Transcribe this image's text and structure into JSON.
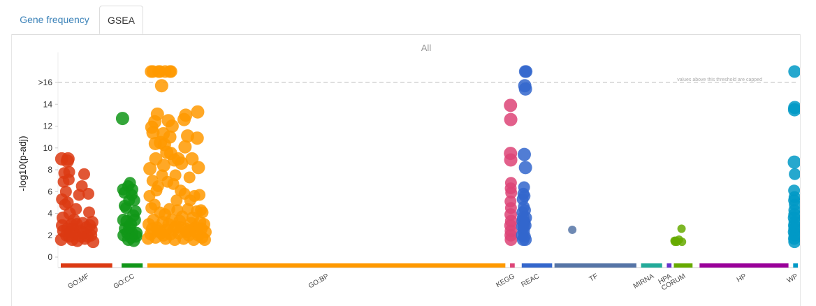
{
  "tabs": [
    {
      "label": "Gene frequency",
      "active": false
    },
    {
      "label": "GSEA",
      "active": true
    }
  ],
  "chart_data": {
    "type": "scatter",
    "title": "All",
    "ylabel": "-log10(p-adj)",
    "ylim": [
      -1,
      17.5
    ],
    "y_ticks": [
      {
        "value": 0,
        "label": "0"
      },
      {
        "value": 2,
        "label": "2"
      },
      {
        "value": 4,
        "label": "4"
      },
      {
        "value": 6,
        "label": "6"
      },
      {
        "value": 8,
        "label": "8"
      },
      {
        "value": 10,
        "label": "10"
      },
      {
        "value": 12,
        "label": "12"
      },
      {
        "value": 14,
        "label": "14"
      },
      {
        "value": 16,
        "label": ">16"
      }
    ],
    "threshold": {
      "value": 16,
      "label": "values above this threshold are capped"
    },
    "sources": [
      {
        "name": "GO:MF",
        "color": "#dc3912",
        "range": [
          0,
          22
        ],
        "points": [
          [
            0.4,
            9.0
          ],
          [
            0.5,
            5.3
          ],
          [
            1.2,
            6.9
          ],
          [
            1.5,
            7.7
          ],
          [
            2.8,
            8.8
          ],
          [
            3.1,
            9.0
          ],
          [
            3.4,
            7.1
          ],
          [
            3.6,
            7.8
          ],
          [
            2.2,
            6.0
          ],
          [
            3.0,
            5.0
          ],
          [
            3.8,
            4.0
          ],
          [
            6.5,
            4.4
          ],
          [
            7.8,
            5.7
          ],
          [
            9.0,
            6.5
          ],
          [
            10.0,
            7.6
          ],
          [
            11.8,
            5.8
          ],
          [
            12.1,
            4.1
          ],
          [
            13.4,
            3.2
          ],
          [
            0.9,
            3.6
          ],
          [
            1.8,
            4.8
          ],
          [
            4.6,
            3.0
          ],
          [
            5.3,
            2.6
          ],
          [
            6.1,
            2.1
          ],
          [
            8.2,
            2.4
          ],
          [
            9.4,
            3.1
          ],
          [
            11.0,
            2.7
          ],
          [
            12.9,
            2.0
          ],
          [
            1.1,
            2.4
          ],
          [
            2.4,
            2.0
          ],
          [
            3.6,
            1.9
          ],
          [
            4.9,
            1.6
          ],
          [
            7.1,
            1.5
          ],
          [
            10.3,
            1.7
          ],
          [
            13.8,
            1.4
          ],
          [
            0.6,
            2.9
          ],
          [
            5.7,
            3.4
          ],
          [
            8.7,
            1.9
          ],
          [
            12.4,
            2.9
          ],
          [
            2.9,
            2.6
          ],
          [
            4.1,
            2.3
          ],
          [
            6.8,
            3.0
          ],
          [
            9.8,
            2.2
          ],
          [
            11.5,
            1.9
          ],
          [
            0.2,
            1.6
          ],
          [
            13.1,
            2.5
          ]
        ]
      },
      {
        "name": "GO:CC",
        "color": "#109618",
        "range": [
          26,
          35
        ],
        "points": [
          [
            0.4,
            12.7
          ],
          [
            0.6,
            6.2
          ],
          [
            1.2,
            5.9
          ],
          [
            1.9,
            4.5
          ],
          [
            2.8,
            6.5
          ],
          [
            3.2,
            5.2
          ],
          [
            3.6,
            6.8
          ],
          [
            4.3,
            5.7
          ],
          [
            4.6,
            6.2
          ],
          [
            5.0,
            3.8
          ],
          [
            5.4,
            5.2
          ],
          [
            6.0,
            4.2
          ],
          [
            6.3,
            2.2
          ],
          [
            0.8,
            3.4
          ],
          [
            1.5,
            2.6
          ],
          [
            2.2,
            3.3
          ],
          [
            3.3,
            2.7
          ],
          [
            4.4,
            2.2
          ],
          [
            5.6,
            3.4
          ],
          [
            0.9,
            2.0
          ],
          [
            2.5,
            2.2
          ],
          [
            4.0,
            1.8
          ],
          [
            6.2,
            1.9
          ],
          [
            1.3,
            4.7
          ],
          [
            3.9,
            3.0
          ],
          [
            2.9,
            1.6
          ],
          [
            5.2,
            1.5
          ]
        ]
      },
      {
        "name": "GO:BP",
        "color": "#ff9900",
        "range": [
          37,
          190
        ],
        "points": [
          [
            1.6,
            17.0
          ],
          [
            2.4,
            17.0
          ],
          [
            4.8,
            17.0
          ],
          [
            5.4,
            17.0
          ],
          [
            7.6,
            17.0
          ],
          [
            9.6,
            17.0
          ],
          [
            10.1,
            17.0
          ],
          [
            6.1,
            15.7
          ],
          [
            1.1,
            8.1
          ],
          [
            1.9,
            11.9
          ],
          [
            2.4,
            11.4
          ],
          [
            3.2,
            12.4
          ],
          [
            3.4,
            10.4
          ],
          [
            4.3,
            13.1
          ],
          [
            5.6,
            10.5
          ],
          [
            6.8,
            11.3
          ],
          [
            7.3,
            10.3
          ],
          [
            9.0,
            12.5
          ],
          [
            9.6,
            11.0
          ],
          [
            10.6,
            12.0
          ],
          [
            11.5,
            8.9
          ],
          [
            13.2,
            9.0
          ],
          [
            15.7,
            12.6
          ],
          [
            16.4,
            13.0
          ],
          [
            17.2,
            11.1
          ],
          [
            19.1,
            9.0
          ],
          [
            21.5,
            13.3
          ],
          [
            21.3,
            10.9
          ],
          [
            21.8,
            8.2
          ],
          [
            3.6,
            9.0
          ],
          [
            8.3,
            9.6
          ],
          [
            10.0,
            9.5
          ],
          [
            14.6,
            8.6
          ],
          [
            16.1,
            10.1
          ],
          [
            2.2,
            7.0
          ],
          [
            4.6,
            6.5
          ],
          [
            6.3,
            7.5
          ],
          [
            8.6,
            6.9
          ],
          [
            11.1,
            6.7
          ],
          [
            12.5,
            5.2
          ],
          [
            14.2,
            6.1
          ],
          [
            15.9,
            5.8
          ],
          [
            18.3,
            5.2
          ],
          [
            20.1,
            5.6
          ],
          [
            22.3,
            5.7
          ],
          [
            0.9,
            5.6
          ],
          [
            1.7,
            4.5
          ],
          [
            3.1,
            4.8
          ],
          [
            5.3,
            4.1
          ],
          [
            7.5,
            3.9
          ],
          [
            9.4,
            4.4
          ],
          [
            12.8,
            4.3
          ],
          [
            14.9,
            3.7
          ],
          [
            17.3,
            4.4
          ],
          [
            19.4,
            3.6
          ],
          [
            21.1,
            4.2
          ],
          [
            22.9,
            4.3
          ],
          [
            23.6,
            4.1
          ],
          [
            0.6,
            3.0
          ],
          [
            2.6,
            3.4
          ],
          [
            4.0,
            2.7
          ],
          [
            6.6,
            3.2
          ],
          [
            8.2,
            2.5
          ],
          [
            10.4,
            3.4
          ],
          [
            12.2,
            2.8
          ],
          [
            13.8,
            3.3
          ],
          [
            16.3,
            2.6
          ],
          [
            18.7,
            3.1
          ],
          [
            20.6,
            2.7
          ],
          [
            22.5,
            3.2
          ],
          [
            24.2,
            3.0
          ],
          [
            1.4,
            2.1
          ],
          [
            3.5,
            1.8
          ],
          [
            5.9,
            2.2
          ],
          [
            7.8,
            1.7
          ],
          [
            9.9,
            2.1
          ],
          [
            11.7,
            1.6
          ],
          [
            13.4,
            2.2
          ],
          [
            15.5,
            1.7
          ],
          [
            17.7,
            2.0
          ],
          [
            19.8,
            1.6
          ],
          [
            21.8,
            2.0
          ],
          [
            23.4,
            1.8
          ],
          [
            24.8,
            2.3
          ],
          [
            2.1,
            2.6
          ],
          [
            4.4,
            2.4
          ],
          [
            6.9,
            2.0
          ],
          [
            9.1,
            3.0
          ],
          [
            11.3,
            2.5
          ],
          [
            14.4,
            2.7
          ],
          [
            16.8,
            2.3
          ],
          [
            18.9,
            2.5
          ],
          [
            20.9,
            2.3
          ],
          [
            23.1,
            2.6
          ],
          [
            0.3,
            1.7
          ],
          [
            24.5,
            1.6
          ],
          [
            12.0,
            7.5
          ],
          [
            7.0,
            8.4
          ],
          [
            3.9,
            6.1
          ],
          [
            18.0,
            7.3
          ]
        ]
      },
      {
        "name": "KEGG",
        "color": "#dd4477",
        "range": [
          192,
          194
        ],
        "points": [
          [
            0.2,
            13.9
          ],
          [
            0.3,
            12.6
          ],
          [
            0.2,
            9.5
          ],
          [
            0.3,
            8.9
          ],
          [
            0.4,
            6.8
          ],
          [
            0.3,
            6.3
          ],
          [
            0.5,
            5.9
          ],
          [
            0.2,
            5.1
          ],
          [
            0.4,
            4.5
          ],
          [
            0.3,
            3.9
          ],
          [
            0.5,
            3.3
          ],
          [
            0.2,
            2.9
          ],
          [
            0.4,
            2.4
          ],
          [
            0.3,
            2.0
          ],
          [
            0.4,
            1.6
          ]
        ]
      },
      {
        "name": "REAC",
        "color": "#3366cc",
        "range": [
          197,
          210
        ],
        "points": [
          [
            1.5,
            17.0
          ],
          [
            1.9,
            17.0
          ],
          [
            1.3,
            15.7
          ],
          [
            1.6,
            15.4
          ],
          [
            1.1,
            9.4
          ],
          [
            1.6,
            8.2
          ],
          [
            1.0,
            6.4
          ],
          [
            0.7,
            5.8
          ],
          [
            1.2,
            5.6
          ],
          [
            0.4,
            5.3
          ],
          [
            0.9,
            4.6
          ],
          [
            0.3,
            4.1
          ],
          [
            1.4,
            4.3
          ],
          [
            0.6,
            3.6
          ],
          [
            1.1,
            3.2
          ],
          [
            0.3,
            2.8
          ],
          [
            1.5,
            2.9
          ],
          [
            0.8,
            2.4
          ],
          [
            0.2,
            2.0
          ],
          [
            1.2,
            1.9
          ],
          [
            0.6,
            1.6
          ],
          [
            1.6,
            1.6
          ],
          [
            0.4,
            3.3
          ],
          [
            0.9,
            2.8
          ],
          [
            1.7,
            3.6
          ]
        ]
      },
      {
        "name": "TF",
        "color": "#5574a6",
        "range": [
          211,
          246
        ],
        "points": [
          [
            7.6,
            2.5
          ]
        ]
      },
      {
        "name": "MIRNA",
        "color": "#22aa99",
        "range": [
          248,
          257
        ],
        "points": []
      },
      {
        "name": "HPA",
        "color": "#6633cc",
        "range": [
          259,
          261
        ],
        "points": []
      },
      {
        "name": "CORUM",
        "color": "#66aa00",
        "range": [
          262,
          270
        ],
        "points": [
          [
            0.3,
            1.5
          ],
          [
            0.5,
            1.4
          ],
          [
            0.8,
            1.5
          ],
          [
            1.3,
            1.4
          ],
          [
            2.2,
            1.6
          ],
          [
            3.3,
            2.6
          ],
          [
            3.5,
            1.4
          ]
        ]
      },
      {
        "name": "HP",
        "color": "#990099",
        "range": [
          273,
          311
        ],
        "points": []
      },
      {
        "name": "WP",
        "color": "#0099c6",
        "range": [
          313,
          315
        ],
        "points": [
          [
            0.6,
            17.0
          ],
          [
            0.7,
            13.7
          ],
          [
            0.6,
            13.5
          ],
          [
            0.5,
            8.7
          ],
          [
            0.7,
            7.6
          ],
          [
            0.4,
            6.1
          ],
          [
            0.6,
            5.5
          ],
          [
            0.4,
            5.2
          ],
          [
            0.7,
            4.8
          ],
          [
            0.5,
            4.3
          ],
          [
            0.6,
            3.9
          ],
          [
            0.4,
            3.6
          ],
          [
            0.7,
            3.2
          ],
          [
            0.5,
            2.9
          ],
          [
            0.6,
            2.6
          ],
          [
            0.4,
            2.3
          ],
          [
            0.7,
            2.0
          ],
          [
            0.5,
            1.7
          ],
          [
            0.6,
            1.4
          ]
        ]
      }
    ]
  }
}
